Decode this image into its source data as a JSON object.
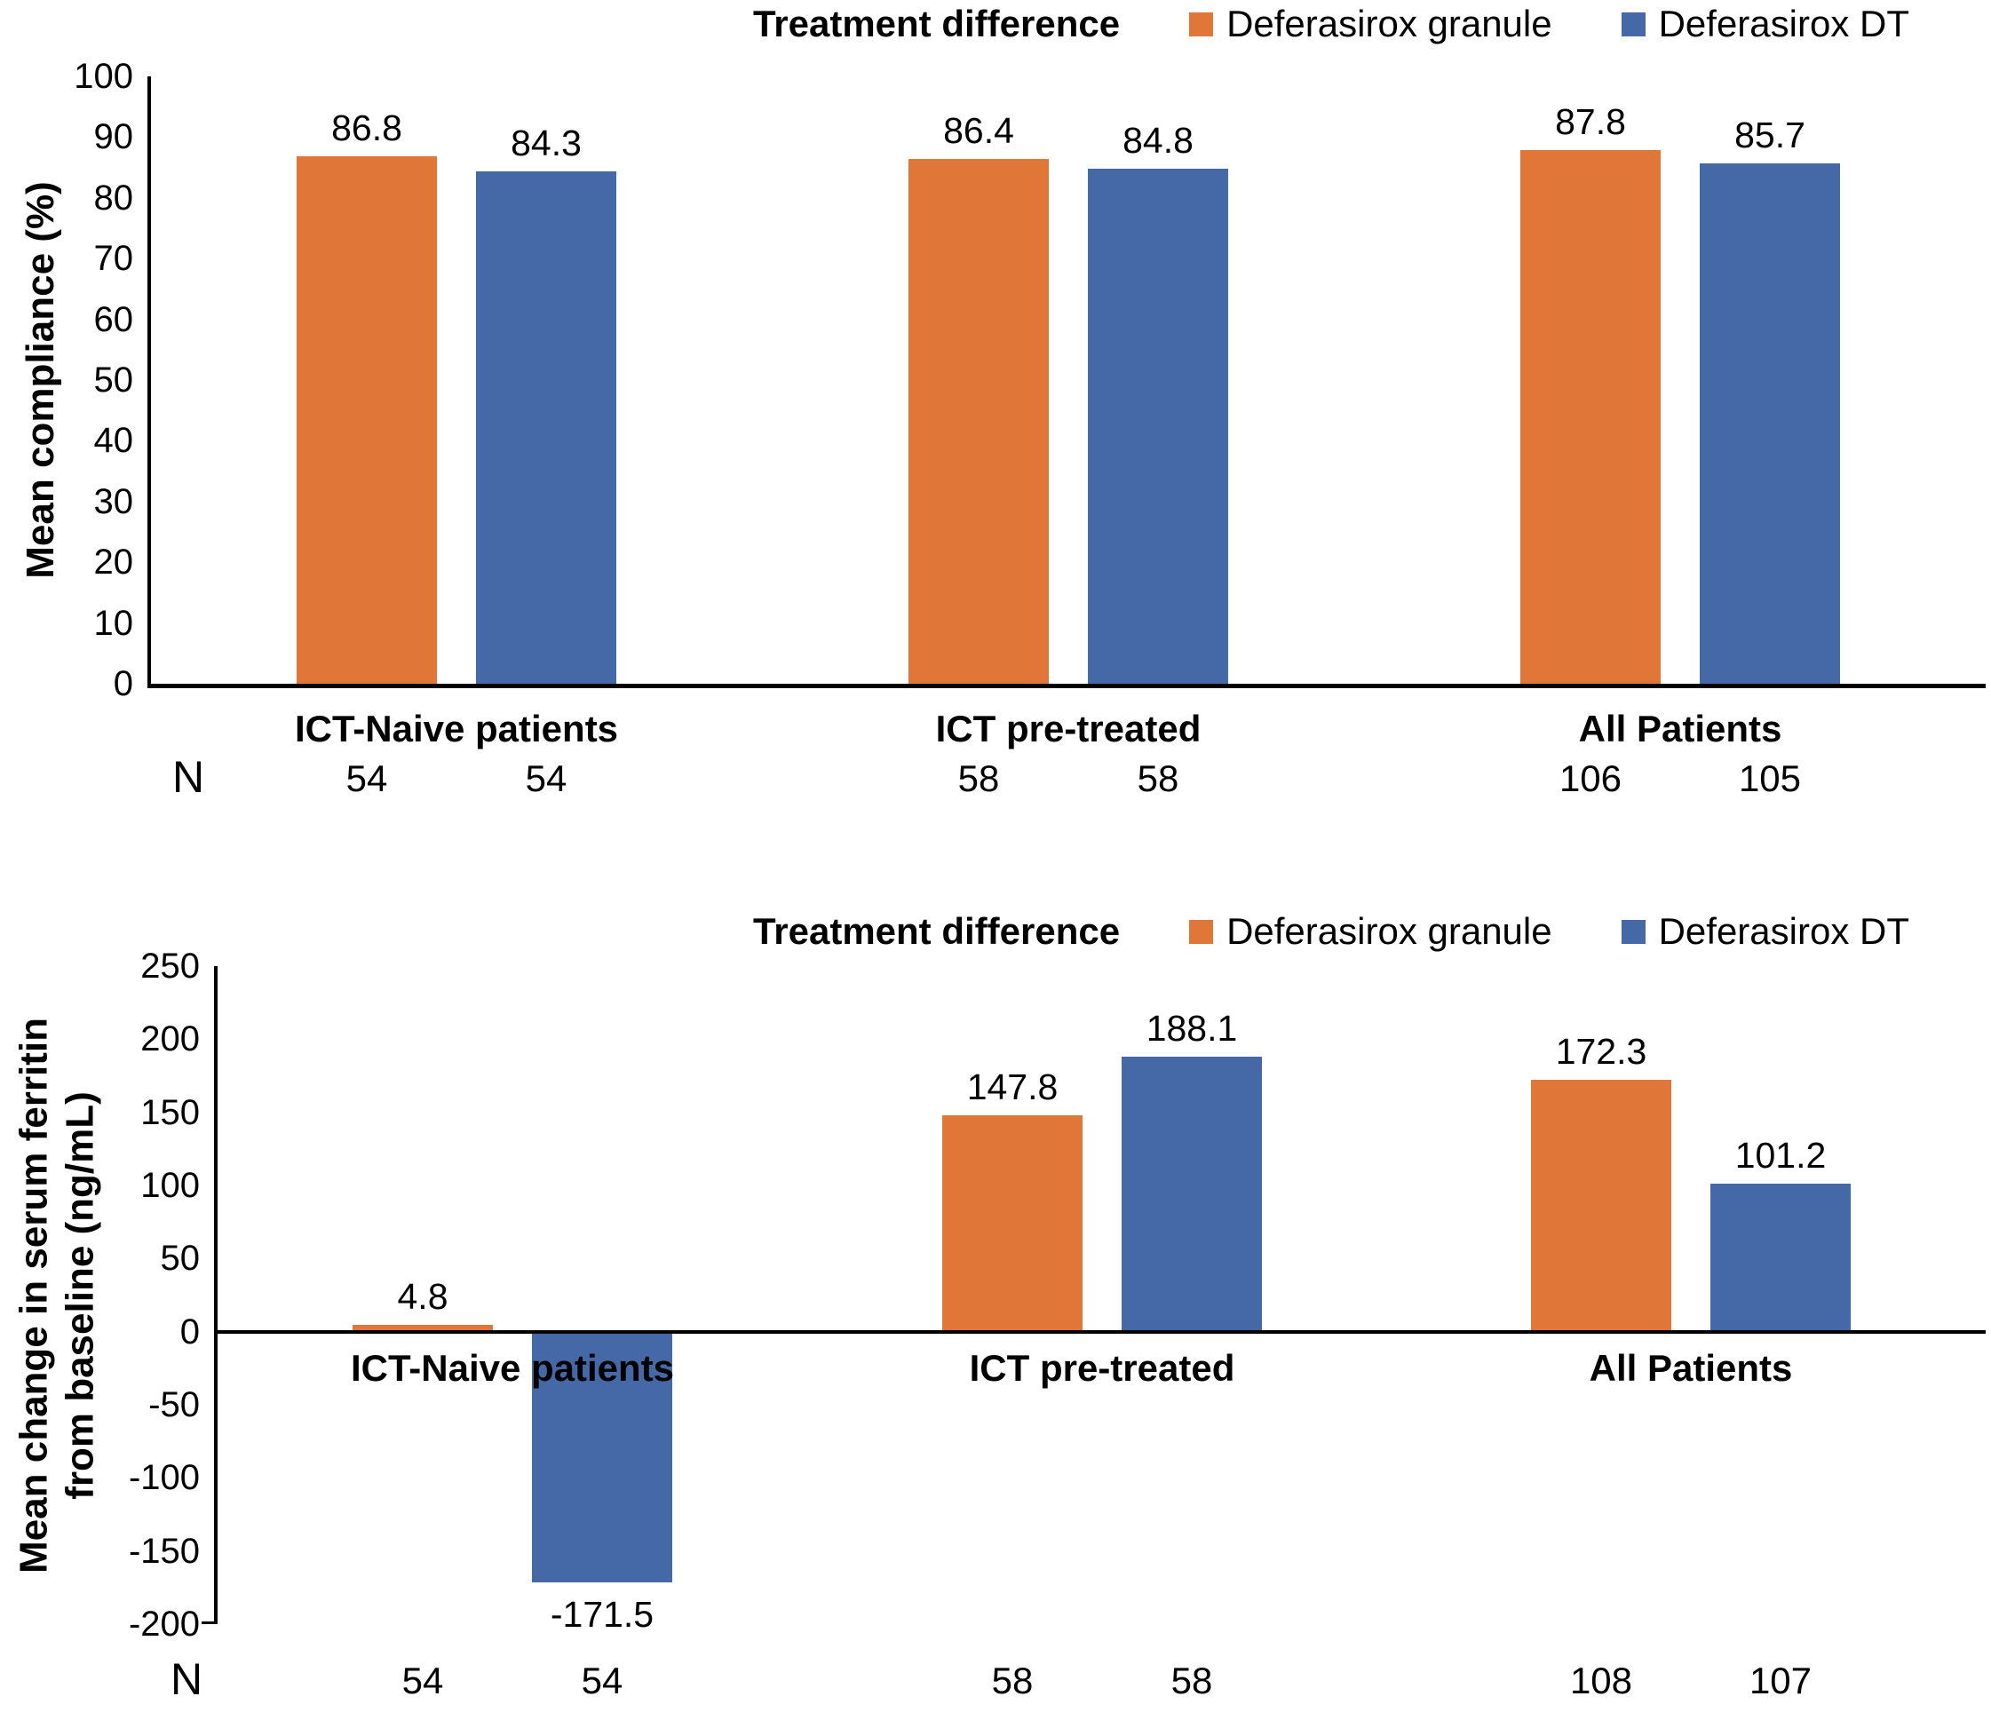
{
  "page": {
    "background": "#ffffff",
    "text_color": "#000000"
  },
  "chart_data": [
    {
      "type": "bar",
      "title": "",
      "legend_title": "Treatment difference",
      "legend_position": "top-right",
      "grid": false,
      "ylabel_lines": [
        "Mean compliance (%)"
      ],
      "ylim": [
        0,
        100
      ],
      "ytick_step": 10,
      "yticks": [
        100,
        90,
        80,
        70,
        60,
        50,
        40,
        30,
        20,
        10,
        0
      ],
      "categories": [
        "ICT-Naive patients",
        "ICT pre-treated",
        "All Patients"
      ],
      "series": [
        {
          "name": "Deferasirox granule",
          "color": "#E17639",
          "values": [
            86.8,
            86.4,
            87.8
          ],
          "n": [
            54,
            58,
            106
          ]
        },
        {
          "name": "Deferasirox DT",
          "color": "#4568A7",
          "values": [
            84.3,
            84.8,
            85.7
          ],
          "n": [
            54,
            58,
            105
          ]
        }
      ],
      "n_row_label": "N"
    },
    {
      "type": "bar",
      "title": "",
      "legend_title": "Treatment difference",
      "legend_position": "top-right",
      "grid": false,
      "ylabel_lines": [
        "Mean change in serum ferritin",
        "from baseline (ng/mL)"
      ],
      "ylim": [
        -200,
        250
      ],
      "ytick_step": 50,
      "yticks": [
        250,
        200,
        150,
        100,
        50,
        0,
        -50,
        -100,
        -150,
        -200
      ],
      "categories": [
        "ICT-Naive patients",
        "ICT pre-treated",
        "All Patients"
      ],
      "series": [
        {
          "name": "Deferasirox granule",
          "color": "#E17639",
          "values": [
            4.8,
            147.8,
            172.3
          ],
          "n": [
            54,
            58,
            108
          ]
        },
        {
          "name": "Deferasirox DT",
          "color": "#4568A7",
          "values": [
            -171.5,
            188.1,
            101.2
          ],
          "n": [
            54,
            58,
            107
          ]
        }
      ],
      "n_row_label": "N"
    }
  ]
}
